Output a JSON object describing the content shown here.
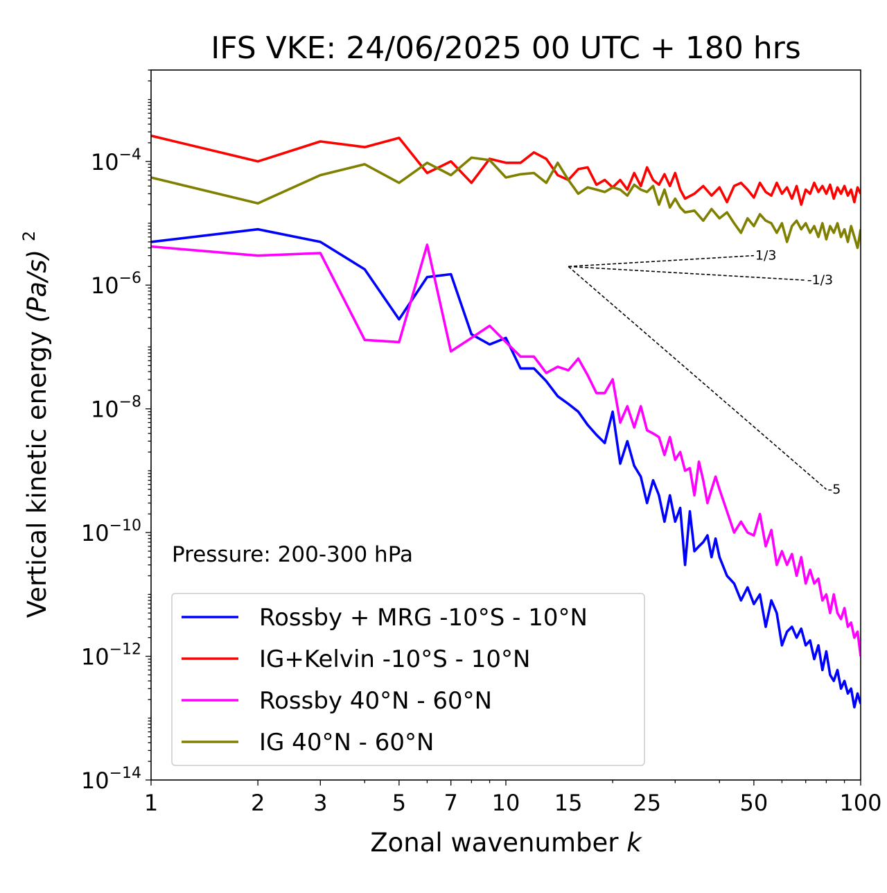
{
  "chart_data": {
    "type": "line",
    "title": "IFS VKE: 24/06/2025 00 UTC + 180 hrs",
    "xlabel": "Zonal wavenumber",
    "xlabel_var": "k",
    "ylabel": "Vertical kinetic energy",
    "ylabel_unit": "(Pa/s)",
    "ylabel_exp": "2",
    "x_scale": "log",
    "y_scale": "log",
    "xlim": [
      1,
      100
    ],
    "ylim": [
      1e-14,
      0.003
    ],
    "x_ticks": [
      1,
      2,
      3,
      5,
      7,
      10,
      15,
      25,
      50,
      100
    ],
    "y_ticks": [
      {
        "base": "10",
        "exp": "−4",
        "value": 0.0001
      },
      {
        "base": "10",
        "exp": "−6",
        "value": 1e-06
      },
      {
        "base": "10",
        "exp": "−8",
        "value": 1e-08
      },
      {
        "base": "10",
        "exp": "−10",
        "value": 1e-10
      },
      {
        "base": "10",
        "exp": "−12",
        "value": 1e-12
      },
      {
        "base": "10",
        "exp": "−14",
        "value": 1e-14
      }
    ],
    "annotation": "Pressure: 200-300 hPa",
    "legend_position": "lower-left",
    "reference_slopes": [
      {
        "label": "1/3",
        "from": [
          15,
          2e-06
        ],
        "to": [
          50,
          3e-06
        ]
      },
      {
        "label": "-1/3",
        "from": [
          15,
          2e-06
        ],
        "to": [
          70,
          1.2e-06
        ]
      },
      {
        "label": "-5",
        "from": [
          15,
          2e-06
        ],
        "to": [
          80,
          5e-10
        ]
      }
    ],
    "series": [
      {
        "name": "Rossby + MRG -10°S - 10°N",
        "color": "#0000ff",
        "points": [
          [
            1,
            5e-06
          ],
          [
            2,
            8e-06
          ],
          [
            3,
            5e-06
          ],
          [
            4,
            1.8e-06
          ],
          [
            5,
            2.8e-07
          ],
          [
            6,
            1.35e-06
          ],
          [
            7,
            1.5e-06
          ],
          [
            8,
            1.6e-07
          ],
          [
            9,
            1.1e-07
          ],
          [
            10,
            1.4e-07
          ],
          [
            11,
            4.5e-08
          ],
          [
            12,
            4.5e-08
          ],
          [
            13,
            2.8e-08
          ],
          [
            14,
            1.6e-08
          ],
          [
            15,
            1.2e-08
          ],
          [
            16,
            9e-09
          ],
          [
            17,
            5.5e-09
          ],
          [
            18,
            3.8e-09
          ],
          [
            19,
            2.8e-09
          ],
          [
            20,
            9e-09
          ],
          [
            21,
            1.3e-09
          ],
          [
            22,
            3e-09
          ],
          [
            23,
            1.2e-09
          ],
          [
            24,
            8e-10
          ],
          [
            25,
            3e-10
          ],
          [
            26,
            7e-10
          ],
          [
            27,
            4e-10
          ],
          [
            28,
            1.5e-10
          ],
          [
            29,
            4e-10
          ],
          [
            30,
            1.5e-10
          ],
          [
            31,
            2.5e-10
          ],
          [
            32,
            3e-11
          ],
          [
            33,
            2.2e-10
          ],
          [
            34,
            5e-11
          ],
          [
            35,
            6e-11
          ],
          [
            36,
            7e-11
          ],
          [
            37,
            9e-11
          ],
          [
            38,
            4e-11
          ],
          [
            39,
            8e-11
          ],
          [
            40,
            4e-11
          ],
          [
            42,
            2e-11
          ],
          [
            44,
            1.5e-11
          ],
          [
            46,
            8e-12
          ],
          [
            48,
            1.3e-11
          ],
          [
            50,
            7e-12
          ],
          [
            52,
            1e-11
          ],
          [
            54,
            3e-12
          ],
          [
            56,
            8e-12
          ],
          [
            58,
            5e-12
          ],
          [
            60,
            1.5e-12
          ],
          [
            62,
            2.5e-12
          ],
          [
            64,
            3e-12
          ],
          [
            66,
            2e-12
          ],
          [
            68,
            2.8e-12
          ],
          [
            70,
            1.5e-12
          ],
          [
            72,
            1.8e-12
          ],
          [
            74,
            9e-13
          ],
          [
            76,
            1.5e-12
          ],
          [
            78,
            6e-13
          ],
          [
            80,
            1.2e-12
          ],
          [
            82,
            5e-13
          ],
          [
            84,
            4e-13
          ],
          [
            86,
            6e-13
          ],
          [
            88,
            3e-13
          ],
          [
            90,
            4e-13
          ],
          [
            92,
            2.5e-13
          ],
          [
            94,
            3e-13
          ],
          [
            96,
            1.5e-13
          ],
          [
            98,
            2.5e-13
          ],
          [
            100,
            1.7e-13
          ]
        ]
      },
      {
        "name": "IG+Kelvin -10°S - 10°N",
        "color": "#ff0000",
        "points": [
          [
            1,
            0.00026
          ],
          [
            2,
            0.0001
          ],
          [
            3,
            0.00021
          ],
          [
            4,
            0.00017
          ],
          [
            5,
            0.00024
          ],
          [
            6,
            6.5e-05
          ],
          [
            7,
            0.0001
          ],
          [
            8,
            4.5e-05
          ],
          [
            9,
            0.00011
          ],
          [
            10,
            9.5e-05
          ],
          [
            11,
            9.5e-05
          ],
          [
            12,
            0.00014
          ],
          [
            13,
            0.00011
          ],
          [
            14,
            6e-05
          ],
          [
            15,
            5e-05
          ],
          [
            16,
            7.5e-05
          ],
          [
            17,
            8e-05
          ],
          [
            18,
            4.2e-05
          ],
          [
            19,
            5e-05
          ],
          [
            20,
            3.8e-05
          ],
          [
            21,
            5e-05
          ],
          [
            22,
            3.5e-05
          ],
          [
            23,
            6.5e-05
          ],
          [
            24,
            4e-05
          ],
          [
            25,
            8e-05
          ],
          [
            26,
            5e-05
          ],
          [
            27,
            4.2e-05
          ],
          [
            28,
            6.2e-05
          ],
          [
            29,
            4e-05
          ],
          [
            30,
            6.5e-05
          ],
          [
            31,
            3.5e-05
          ],
          [
            32,
            2.5e-05
          ],
          [
            34,
            3e-05
          ],
          [
            36,
            4e-05
          ],
          [
            38,
            2.8e-05
          ],
          [
            40,
            3.8e-05
          ],
          [
            42,
            2.2e-05
          ],
          [
            44,
            4e-05
          ],
          [
            46,
            4.5e-05
          ],
          [
            48,
            3.5e-05
          ],
          [
            50,
            2.6e-05
          ],
          [
            52,
            4.5e-05
          ],
          [
            54,
            3.2e-05
          ],
          [
            56,
            2.8e-05
          ],
          [
            58,
            4.5e-05
          ],
          [
            60,
            3e-05
          ],
          [
            62,
            3.8e-05
          ],
          [
            64,
            2.5e-05
          ],
          [
            66,
            4e-05
          ],
          [
            68,
            2e-05
          ],
          [
            70,
            3.5e-05
          ],
          [
            72,
            3e-05
          ],
          [
            74,
            4.5e-05
          ],
          [
            76,
            3.2e-05
          ],
          [
            78,
            4e-05
          ],
          [
            80,
            3e-05
          ],
          [
            82,
            4.2e-05
          ],
          [
            84,
            2.5e-05
          ],
          [
            86,
            3.8e-05
          ],
          [
            88,
            3e-05
          ],
          [
            90,
            4e-05
          ],
          [
            92,
            2.8e-05
          ],
          [
            94,
            3.5e-05
          ],
          [
            96,
            2.2e-05
          ],
          [
            98,
            3.8e-05
          ],
          [
            100,
            3e-05
          ]
        ]
      },
      {
        "name": "Rossby 40°N - 60°N",
        "color": "#ff00ff",
        "points": [
          [
            1,
            4.2e-06
          ],
          [
            2,
            3e-06
          ],
          [
            3,
            3.3e-06
          ],
          [
            4,
            1.3e-07
          ],
          [
            5,
            1.2e-07
          ],
          [
            6,
            4.5e-06
          ],
          [
            7,
            8.5e-08
          ],
          [
            8,
            1.4e-07
          ],
          [
            9,
            2.2e-07
          ],
          [
            10,
            1.2e-07
          ],
          [
            11,
            7e-08
          ],
          [
            12,
            7e-08
          ],
          [
            13,
            3.8e-08
          ],
          [
            14,
            4.8e-08
          ],
          [
            15,
            4.2e-08
          ],
          [
            16,
            6.5e-08
          ],
          [
            17,
            3.5e-08
          ],
          [
            18,
            1.8e-08
          ],
          [
            19,
            1.8e-08
          ],
          [
            20,
            3e-08
          ],
          [
            21,
            6e-09
          ],
          [
            22,
            1.1e-08
          ],
          [
            23,
            5e-09
          ],
          [
            24,
            1.1e-08
          ],
          [
            25,
            4.5e-09
          ],
          [
            26,
            4e-09
          ],
          [
            27,
            3.5e-09
          ],
          [
            28,
            1.8e-09
          ],
          [
            29,
            3.5e-09
          ],
          [
            30,
            1.5e-09
          ],
          [
            31,
            2e-09
          ],
          [
            32,
            1e-09
          ],
          [
            33,
            1.1e-09
          ],
          [
            34,
            4e-10
          ],
          [
            35,
            1.4e-09
          ],
          [
            36,
            7e-10
          ],
          [
            37,
            3e-10
          ],
          [
            38,
            5e-10
          ],
          [
            39,
            8e-10
          ],
          [
            40,
            5e-10
          ],
          [
            42,
            2.2e-10
          ],
          [
            44,
            1e-10
          ],
          [
            46,
            1.5e-10
          ],
          [
            48,
            1e-10
          ],
          [
            50,
            9e-11
          ],
          [
            52,
            2e-10
          ],
          [
            54,
            6e-11
          ],
          [
            56,
            1.1e-10
          ],
          [
            58,
            3e-11
          ],
          [
            60,
            5e-11
          ],
          [
            62,
            3e-11
          ],
          [
            64,
            4.5e-11
          ],
          [
            66,
            2e-11
          ],
          [
            68,
            4e-11
          ],
          [
            70,
            1.5e-11
          ],
          [
            72,
            2.5e-11
          ],
          [
            74,
            1.5e-11
          ],
          [
            76,
            1.8e-11
          ],
          [
            78,
            8e-12
          ],
          [
            80,
            1e-11
          ],
          [
            82,
            5e-12
          ],
          [
            84,
            1e-11
          ],
          [
            86,
            5e-12
          ],
          [
            88,
            4e-12
          ],
          [
            90,
            6e-12
          ],
          [
            92,
            3e-12
          ],
          [
            94,
            3.5e-12
          ],
          [
            96,
            2e-12
          ],
          [
            98,
            2.5e-12
          ],
          [
            100,
            1e-12
          ]
        ]
      },
      {
        "name": "IG 40°N - 60°N",
        "color": "#808000",
        "points": [
          [
            1,
            5.5e-05
          ],
          [
            2,
            2.1e-05
          ],
          [
            3,
            6e-05
          ],
          [
            4,
            9e-05
          ],
          [
            5,
            4.5e-05
          ],
          [
            6,
            9.5e-05
          ],
          [
            7,
            6e-05
          ],
          [
            8,
            0.000115
          ],
          [
            9,
            0.000105
          ],
          [
            10,
            5.5e-05
          ],
          [
            11,
            6.2e-05
          ],
          [
            12,
            6.5e-05
          ],
          [
            13,
            4.5e-05
          ],
          [
            14,
            9.5e-05
          ],
          [
            15,
            5e-05
          ],
          [
            16,
            3e-05
          ],
          [
            17,
            3.8e-05
          ],
          [
            18,
            3.5e-05
          ],
          [
            19,
            3.2e-05
          ],
          [
            20,
            3.8e-05
          ],
          [
            21,
            3.5e-05
          ],
          [
            22,
            2.8e-05
          ],
          [
            23,
            4.2e-05
          ],
          [
            24,
            3.5e-05
          ],
          [
            25,
            3.2e-05
          ],
          [
            26,
            4e-05
          ],
          [
            27,
            2e-05
          ],
          [
            28,
            3.5e-05
          ],
          [
            29,
            1.8e-05
          ],
          [
            30,
            2.5e-05
          ],
          [
            31,
            1.8e-05
          ],
          [
            32,
            1.5e-05
          ],
          [
            34,
            1.6e-05
          ],
          [
            36,
            1.1e-05
          ],
          [
            38,
            1.7e-05
          ],
          [
            40,
            1.2e-05
          ],
          [
            42,
            1.5e-05
          ],
          [
            44,
            1e-05
          ],
          [
            46,
            7e-06
          ],
          [
            48,
            1.2e-05
          ],
          [
            50,
            9e-06
          ],
          [
            52,
            1.4e-05
          ],
          [
            54,
            1.1e-05
          ],
          [
            56,
            1e-05
          ],
          [
            58,
            7e-06
          ],
          [
            60,
            1e-05
          ],
          [
            62,
            5e-06
          ],
          [
            64,
            9e-06
          ],
          [
            66,
            1.1e-05
          ],
          [
            68,
            8e-06
          ],
          [
            70,
            1e-05
          ],
          [
            72,
            7e-06
          ],
          [
            74,
            9e-06
          ],
          [
            76,
            6e-06
          ],
          [
            78,
            1e-05
          ],
          [
            80,
            5.5e-06
          ],
          [
            82,
            9e-06
          ],
          [
            84,
            7e-06
          ],
          [
            86,
            1e-05
          ],
          [
            88,
            6e-06
          ],
          [
            90,
            8e-06
          ],
          [
            92,
            5e-06
          ],
          [
            94,
            9e-06
          ],
          [
            96,
            6e-06
          ],
          [
            98,
            4e-06
          ],
          [
            100,
            8e-06
          ]
        ]
      }
    ]
  }
}
